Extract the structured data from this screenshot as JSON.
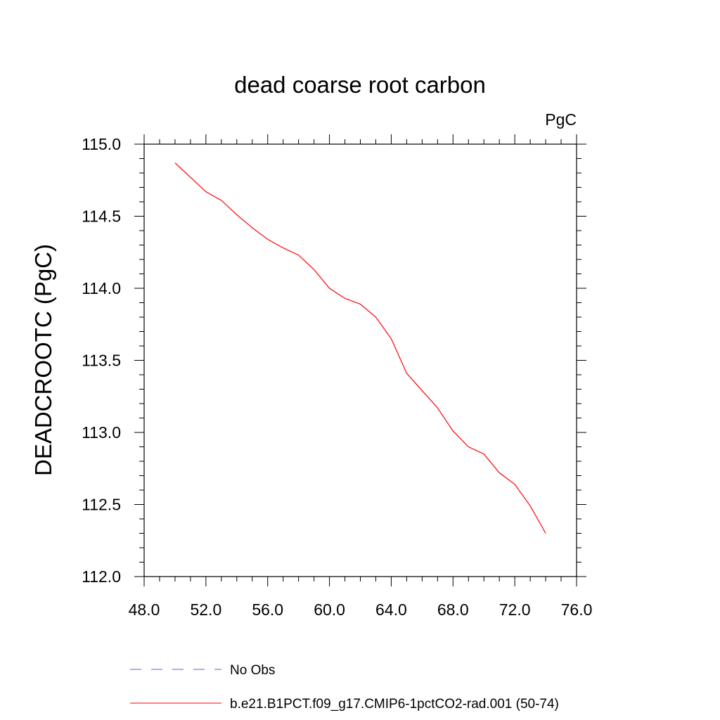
{
  "chart_data": {
    "type": "line",
    "title": "dead coarse root carbon",
    "units_label": "PgC",
    "ylabel": "DEADCROOTC  (PgC)",
    "xlabel": "",
    "xlim": [
      48.0,
      76.0
    ],
    "ylim": [
      112.0,
      115.0
    ],
    "x_ticks": [
      "48.0",
      "52.0",
      "56.0",
      "60.0",
      "64.0",
      "68.0",
      "72.0",
      "76.0"
    ],
    "y_ticks": [
      "112.0",
      "112.5",
      "113.0",
      "113.5",
      "114.0",
      "114.5",
      "115.0"
    ],
    "series": [
      {
        "name": "No Obs",
        "color": "#6a5acd",
        "dash": "dashed",
        "x": [],
        "y": []
      },
      {
        "name": "b.e21.B1PCT.f09_g17.CMIP6-1pctCO2-rad.001 (50-74)",
        "color": "#ff0000",
        "dash": "solid",
        "x": [
          50,
          51,
          52,
          53,
          54,
          55,
          56,
          57,
          58,
          59,
          60,
          61,
          62,
          63,
          64,
          65,
          66,
          67,
          68,
          69,
          70,
          71,
          72,
          73,
          74
        ],
        "y": [
          114.87,
          114.77,
          114.67,
          114.61,
          114.51,
          114.42,
          114.34,
          114.28,
          114.23,
          114.13,
          114.0,
          113.93,
          113.89,
          113.8,
          113.65,
          113.41,
          113.29,
          113.17,
          113.01,
          112.9,
          112.85,
          112.72,
          112.64,
          112.49,
          112.3
        ]
      }
    ],
    "legend_position": "bottom"
  }
}
